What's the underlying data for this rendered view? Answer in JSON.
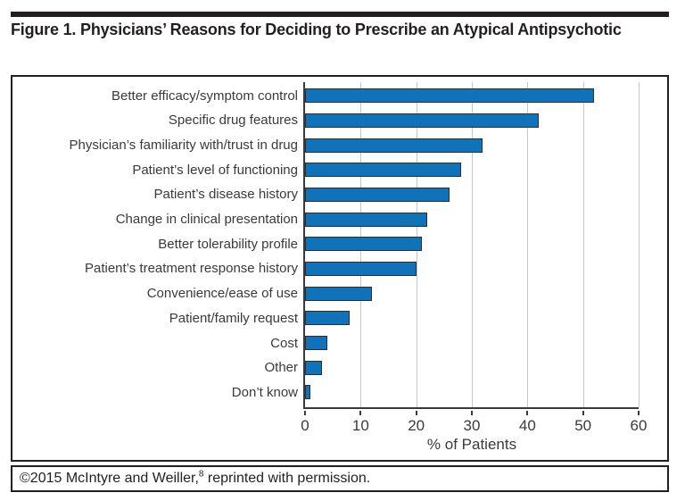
{
  "figure": {
    "title": "Figure 1. Physicians’ Reasons for Deciding to Prescribe an Atypical Antipsychotic",
    "footer": {
      "prefix": "©2015 McIntyre and Weiller,",
      "superscript": "8",
      "suffix": " reprinted with permission."
    }
  },
  "colors": {
    "bar_fill": "#1072b8",
    "bar_border": "#2e2e2e",
    "axis": "#3a3a3a",
    "gridline": "#c7c7c7",
    "ink": "#231f20",
    "label_text": "#3a3a3a"
  },
  "chart_data": {
    "type": "bar",
    "orientation": "horizontal",
    "title": "Figure 1. Physicians’ Reasons for Deciding to Prescribe an Atypical Antipsychotic",
    "categories": [
      "Better efficacy/symptom control",
      "Specific drug features",
      "Physician’s familiarity with/trust in drug",
      "Patient’s level of functioning",
      "Patient’s disease history",
      "Change in clinical presentation",
      "Better tolerability profile",
      "Patient’s treatment response history",
      "Convenience/ease of use",
      "Patient/family request",
      "Cost",
      "Other",
      "Don’t know"
    ],
    "values": [
      52,
      42,
      32,
      28,
      26,
      22,
      21,
      20,
      12,
      8,
      4,
      3,
      1
    ],
    "xlabel": "% of Patients",
    "ylabel": "",
    "xlim": [
      0,
      60
    ],
    "xticks": [
      0,
      10,
      20,
      30,
      40,
      50,
      60
    ],
    "grid": "vertical-gridlines-on",
    "legend": "none"
  }
}
